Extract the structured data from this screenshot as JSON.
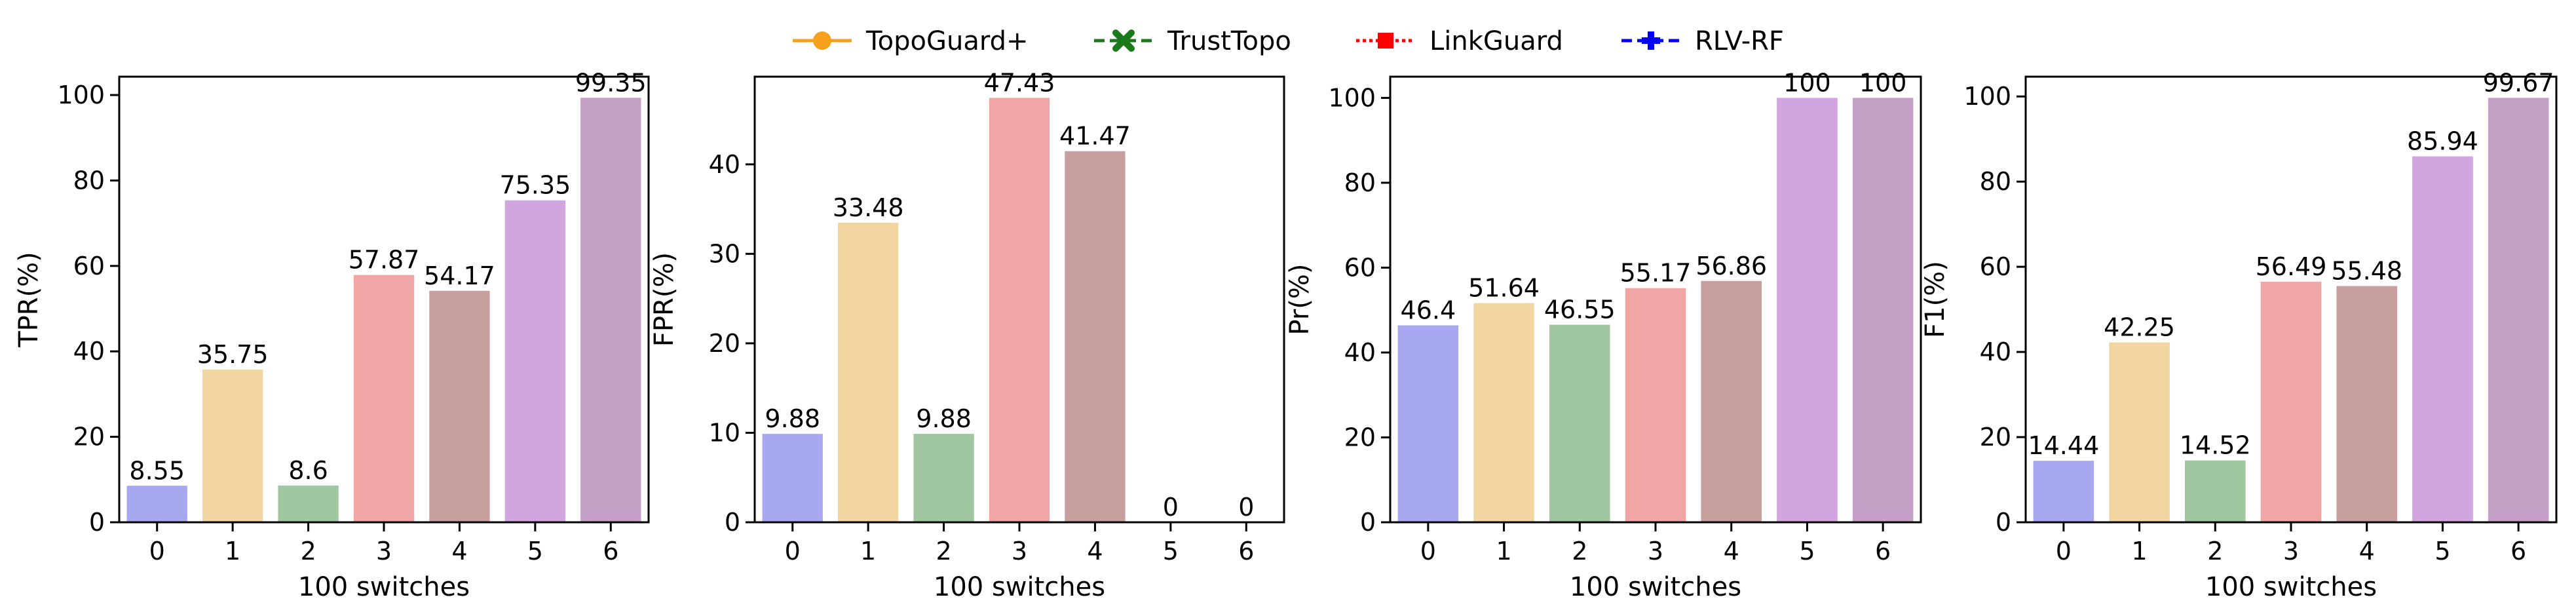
{
  "legend": [
    {
      "label": "TopoGuard+",
      "color": "#f5a11d",
      "line": "solid",
      "marker": "circle"
    },
    {
      "label": "TrustTopo",
      "color": "#1a7a1a",
      "line": "dashed",
      "marker": "x"
    },
    {
      "label": "LinkGuard",
      "color": "#ff0000",
      "line": "dotted",
      "marker": "square"
    },
    {
      "label": "RLV-RF",
      "color": "#0000ff",
      "line": "dashed",
      "marker": "plus"
    }
  ],
  "bar_colors": [
    "#a8a8f0",
    "#f1d6a1",
    "#a0c7a0",
    "#f1a6a6",
    "#c7a09d",
    "#d0a5e0",
    "#c49fc6"
  ],
  "chart_data": [
    {
      "type": "bar",
      "categories": [
        "0",
        "1",
        "2",
        "3",
        "4",
        "5",
        "6"
      ],
      "values": [
        8.55,
        35.75,
        8.6,
        57.87,
        54.17,
        75.35,
        99.35
      ],
      "value_labels": [
        "8.55",
        "35.75",
        "8.6",
        "57.87",
        "54.17",
        "75.35",
        "99.35"
      ],
      "xlabel": "100 switches",
      "ylabel": "TPR(%)",
      "ylim": [
        0,
        104.3
      ],
      "yticks": [
        "0",
        "20",
        "40",
        "60",
        "80",
        "100"
      ],
      "ytick_values": [
        0,
        20,
        40,
        60,
        80,
        100
      ]
    },
    {
      "type": "bar",
      "categories": [
        "0",
        "1",
        "2",
        "3",
        "4",
        "5",
        "6"
      ],
      "values": [
        9.88,
        33.48,
        9.88,
        47.43,
        41.47,
        0,
        0
      ],
      "value_labels": [
        "9.88",
        "33.48",
        "9.88",
        "47.43",
        "41.47",
        "0",
        "0"
      ],
      "xlabel": "100 switches",
      "ylabel": "FPR(%)",
      "ylim": [
        0,
        49.8
      ],
      "yticks": [
        "0",
        "10",
        "20",
        "30",
        "40"
      ],
      "ytick_values": [
        0,
        10,
        20,
        30,
        40
      ]
    },
    {
      "type": "bar",
      "categories": [
        "0",
        "1",
        "2",
        "3",
        "4",
        "5",
        "6"
      ],
      "values": [
        46.4,
        51.64,
        46.55,
        55.17,
        56.86,
        100,
        100
      ],
      "value_labels": [
        "46.4",
        "51.64",
        "46.55",
        "55.17",
        "56.86",
        "100",
        "100"
      ],
      "xlabel": "100 switches",
      "ylabel": "Pr(%)",
      "ylim": [
        0,
        105
      ],
      "yticks": [
        "0",
        "20",
        "40",
        "60",
        "80",
        "100"
      ],
      "ytick_values": [
        0,
        20,
        40,
        60,
        80,
        100
      ]
    },
    {
      "type": "bar",
      "categories": [
        "0",
        "1",
        "2",
        "3",
        "4",
        "5",
        "6"
      ],
      "values": [
        14.44,
        42.25,
        14.52,
        56.49,
        55.48,
        85.94,
        99.67
      ],
      "value_labels": [
        "14.44",
        "42.25",
        "14.52",
        "56.49",
        "55.48",
        "85.94",
        "99.67"
      ],
      "xlabel": "100 switches",
      "ylabel": "F1(%)",
      "ylim": [
        0,
        104.65
      ],
      "yticks": [
        "0",
        "20",
        "40",
        "60",
        "80",
        "100"
      ],
      "ytick_values": [
        0,
        20,
        40,
        60,
        80,
        100
      ]
    }
  ]
}
